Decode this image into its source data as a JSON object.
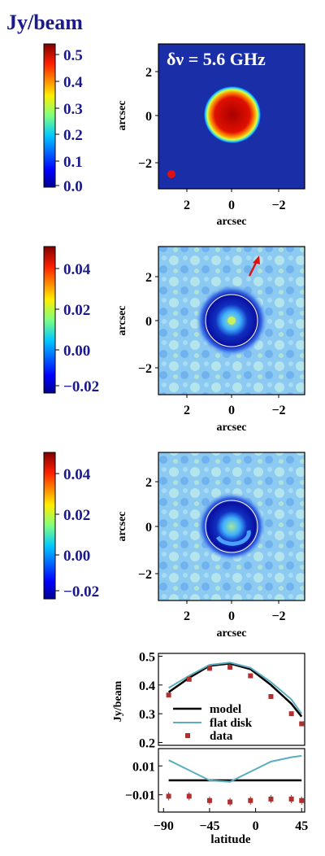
{
  "figure": {
    "unit_title": "Jy/beam",
    "colors": {
      "title": "#1a1a8c",
      "beam": "#e01010",
      "arrow": "#e01010",
      "model": "#000000",
      "flat_disk": "#5aaec0",
      "data": "#b03030"
    }
  },
  "panels": [
    {
      "annotation": "δν =  5.6 GHz",
      "colorbar_ticks": [
        "0.5",
        "0.4",
        "0.3",
        "0.2",
        "0.1",
        "0.0"
      ],
      "ylabel": "arcsec",
      "xlabel": "arcsec",
      "y_ticks": [
        "2",
        "0",
        "−2"
      ],
      "x_ticks": [
        "2",
        "0",
        "−2"
      ],
      "has_beam": true
    },
    {
      "colorbar_ticks": [
        "0.04",
        "0.02",
        "0.00",
        "−0.02"
      ],
      "ylabel": "arcsec",
      "xlabel": "arcsec",
      "y_ticks": [
        "2",
        "0",
        "−2"
      ],
      "x_ticks": [
        "2",
        "0",
        "−2"
      ],
      "has_arrow": true
    },
    {
      "colorbar_ticks": [
        "0.04",
        "0.02",
        "0.00",
        "−0.02"
      ],
      "ylabel": "arcsec",
      "xlabel": "arcsec",
      "y_ticks": [
        "2",
        "0",
        "−2"
      ],
      "x_ticks": [
        "2",
        "0",
        "−2"
      ]
    }
  ],
  "chart_data": [
    {
      "type": "line",
      "ylabel": "Jy/beam",
      "ylim": [
        0.19,
        0.51
      ],
      "xlim": [
        -95,
        48
      ],
      "y_ticks": [
        "0.5",
        "0.4",
        "0.3",
        "0.2"
      ],
      "series": [
        {
          "name": "model",
          "kind": "line",
          "x": [
            -85,
            -65,
            -45,
            -25,
            -5,
            15,
            35,
            45
          ],
          "y": [
            0.375,
            0.425,
            0.467,
            0.475,
            0.455,
            0.4,
            0.335,
            0.29
          ]
        },
        {
          "name": "flat disk",
          "kind": "line",
          "x": [
            -85,
            -65,
            -45,
            -25,
            -5,
            15,
            35,
            45
          ],
          "y": [
            0.39,
            0.432,
            0.47,
            0.478,
            0.46,
            0.41,
            0.35,
            0.3
          ]
        },
        {
          "name": "data",
          "kind": "points",
          "x": [
            -85,
            -65,
            -45,
            -25,
            -5,
            15,
            35,
            45
          ],
          "y": [
            0.365,
            0.42,
            0.458,
            0.462,
            0.432,
            0.36,
            0.3,
            0.265
          ]
        }
      ]
    },
    {
      "type": "line",
      "xlabel": "latitude",
      "ylim": [
        -0.022,
        0.022
      ],
      "xlim": [
        -95,
        48
      ],
      "y_ticks": [
        "0.01",
        "−0.01"
      ],
      "x_ticks": [
        "−90",
        "−45",
        "0",
        "45"
      ],
      "series": [
        {
          "name": "model",
          "kind": "line",
          "x": [
            -85,
            45
          ],
          "y": [
            0.0,
            0.0
          ]
        },
        {
          "name": "flat disk",
          "kind": "line",
          "x": [
            -85,
            -65,
            -45,
            -25,
            -5,
            15,
            35,
            45
          ],
          "y": [
            0.014,
            0.007,
            0.0,
            -0.001,
            0.006,
            0.013,
            0.016,
            0.017
          ]
        },
        {
          "name": "data",
          "kind": "points",
          "x": [
            -85,
            -65,
            -45,
            -25,
            -5,
            15,
            35,
            45
          ],
          "y": [
            -0.011,
            -0.011,
            -0.014,
            -0.015,
            -0.014,
            -0.013,
            -0.013,
            -0.014
          ]
        }
      ]
    }
  ]
}
